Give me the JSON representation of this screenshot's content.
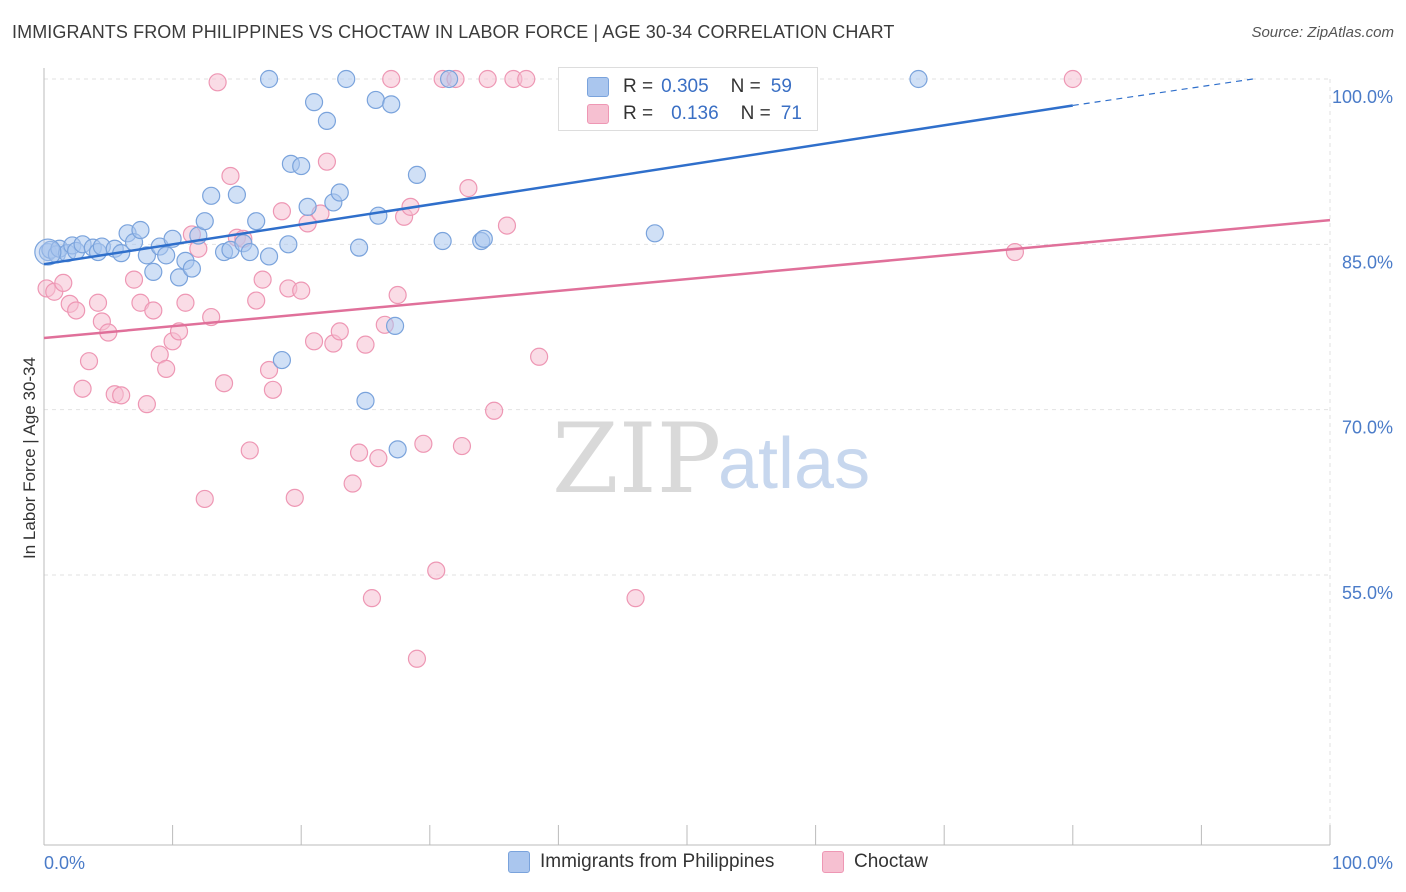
{
  "title": "IMMIGRANTS FROM PHILIPPINES VS CHOCTAW IN LABOR FORCE | AGE 30-34 CORRELATION CHART",
  "source": "Source: ZipAtlas.com",
  "watermark": {
    "zip": "ZIP",
    "atlas": "atlas"
  },
  "colors": {
    "blue_fill": "#aac6ee",
    "blue_stroke": "#7aa3dc",
    "blue_line": "#2f6fcb",
    "pink_fill": "#f6c0d1",
    "pink_stroke": "#ee97b4",
    "pink_line": "#e0709a",
    "grid": "#e2e2e2",
    "axis_text": "#4a7bc8"
  },
  "legend": {
    "rows": [
      {
        "r_label": "R =",
        "r_value": "0.305",
        "n_label": "N =",
        "n_value": "59"
      },
      {
        "r_label": "R =",
        "r_value": "0.136",
        "n_label": "N =",
        "n_value": "71"
      }
    ]
  },
  "chart_data": {
    "type": "scatter",
    "title": "IMMIGRANTS FROM PHILIPPINES VS CHOCTAW IN LABOR FORCE | AGE 30-34 CORRELATION CHART",
    "xlabel": "",
    "ylabel": "In Labor Force | Age 30-34",
    "xlim": [
      0,
      100
    ],
    "ylim": [
      40,
      101.5
    ],
    "x_tick_labels": [
      "0.0%",
      "100.0%"
    ],
    "y_ticks": [
      55,
      70,
      85,
      100
    ],
    "y_tick_labels": [
      "55.0%",
      "70.0%",
      "85.0%",
      "100.0%"
    ],
    "grid": true,
    "legend_placement": "bottom-center",
    "series": [
      {
        "name": "Immigrants from Philippines",
        "color": "#aac6ee",
        "trend": {
          "x0": 0,
          "y0": 83.2,
          "x1": 80,
          "y1": 97.6,
          "dashed_to_x": 94,
          "dashed_to_y": 100
        },
        "points": [
          [
            0.3,
            84.3
          ],
          [
            0.5,
            84.5
          ],
          [
            1.0,
            84.1
          ],
          [
            1.2,
            84.6
          ],
          [
            1.8,
            84.2
          ],
          [
            2.2,
            84.9
          ],
          [
            2.5,
            84.4
          ],
          [
            3.0,
            85.0
          ],
          [
            3.8,
            84.7
          ],
          [
            4.2,
            84.3
          ],
          [
            4.5,
            84.8
          ],
          [
            5.5,
            84.6
          ],
          [
            6.0,
            84.2
          ],
          [
            6.5,
            86.0
          ],
          [
            7.0,
            85.2
          ],
          [
            7.5,
            86.3
          ],
          [
            8.0,
            84.0
          ],
          [
            8.5,
            82.5
          ],
          [
            9.0,
            84.8
          ],
          [
            9.5,
            84.0
          ],
          [
            10.0,
            85.5
          ],
          [
            10.5,
            82.0
          ],
          [
            11.0,
            83.5
          ],
          [
            11.5,
            82.8
          ],
          [
            12.0,
            85.8
          ],
          [
            12.5,
            87.1
          ],
          [
            13.0,
            89.4
          ],
          [
            14.0,
            84.3
          ],
          [
            14.5,
            84.5
          ],
          [
            15.0,
            89.5
          ],
          [
            15.5,
            85.1
          ],
          [
            16.0,
            84.3
          ],
          [
            16.5,
            87.1
          ],
          [
            17.5,
            83.9
          ],
          [
            18.5,
            74.5
          ],
          [
            19.0,
            85.0
          ],
          [
            19.2,
            92.3
          ],
          [
            20.0,
            92.1
          ],
          [
            20.5,
            88.4
          ],
          [
            21.0,
            97.9
          ],
          [
            22.0,
            96.2
          ],
          [
            22.5,
            88.8
          ],
          [
            23.0,
            89.7
          ],
          [
            23.5,
            100.0
          ],
          [
            24.5,
            84.7
          ],
          [
            25.0,
            70.8
          ],
          [
            25.8,
            98.1
          ],
          [
            26.0,
            87.6
          ],
          [
            27.0,
            97.7
          ],
          [
            27.3,
            77.6
          ],
          [
            27.5,
            66.4
          ],
          [
            29.0,
            91.3
          ],
          [
            31.0,
            85.3
          ],
          [
            31.5,
            100.0
          ],
          [
            34.0,
            85.3
          ],
          [
            34.2,
            85.5
          ],
          [
            47.5,
            86.0
          ],
          [
            68.0,
            100.0
          ],
          [
            17.5,
            100.0
          ]
        ]
      },
      {
        "name": "Choctaw",
        "color": "#f6c0d1",
        "trend": {
          "x0": 0,
          "y0": 76.5,
          "x1": 100,
          "y1": 87.2
        },
        "points": [
          [
            0.2,
            81.0
          ],
          [
            0.8,
            80.7
          ],
          [
            1.5,
            81.5
          ],
          [
            2.0,
            79.6
          ],
          [
            2.5,
            79.0
          ],
          [
            3.0,
            71.9
          ],
          [
            3.5,
            74.4
          ],
          [
            4.2,
            79.7
          ],
          [
            4.5,
            78.0
          ],
          [
            5.0,
            77.0
          ],
          [
            5.5,
            71.4
          ],
          [
            6.0,
            71.3
          ],
          [
            7.0,
            81.8
          ],
          [
            7.5,
            79.7
          ],
          [
            8.0,
            70.5
          ],
          [
            8.5,
            79.0
          ],
          [
            9.0,
            75.0
          ],
          [
            9.5,
            73.7
          ],
          [
            10.0,
            76.2
          ],
          [
            10.5,
            77.1
          ],
          [
            11.0,
            79.7
          ],
          [
            11.5,
            85.9
          ],
          [
            12.0,
            84.6
          ],
          [
            12.5,
            61.9
          ],
          [
            13.0,
            78.4
          ],
          [
            13.5,
            99.7
          ],
          [
            14.0,
            72.4
          ],
          [
            14.5,
            91.2
          ],
          [
            15.0,
            85.6
          ],
          [
            15.5,
            85.5
          ],
          [
            16.0,
            66.3
          ],
          [
            16.5,
            79.9
          ],
          [
            17.0,
            81.8
          ],
          [
            17.5,
            73.6
          ],
          [
            17.8,
            71.8
          ],
          [
            18.5,
            88.0
          ],
          [
            19.0,
            81.0
          ],
          [
            19.5,
            62.0
          ],
          [
            20.0,
            80.8
          ],
          [
            20.5,
            86.9
          ],
          [
            21.0,
            76.2
          ],
          [
            21.5,
            87.8
          ],
          [
            22.0,
            92.5
          ],
          [
            22.5,
            76.0
          ],
          [
            23.0,
            77.1
          ],
          [
            24.0,
            63.3
          ],
          [
            24.5,
            66.1
          ],
          [
            25.0,
            75.9
          ],
          [
            25.5,
            52.9
          ],
          [
            26.0,
            65.6
          ],
          [
            26.5,
            77.7
          ],
          [
            27.0,
            100.0
          ],
          [
            27.5,
            80.4
          ],
          [
            28.0,
            87.5
          ],
          [
            28.5,
            88.4
          ],
          [
            29.0,
            47.4
          ],
          [
            29.5,
            66.9
          ],
          [
            30.5,
            55.4
          ],
          [
            31.0,
            100.0
          ],
          [
            32.0,
            100.0
          ],
          [
            32.5,
            66.7
          ],
          [
            33.0,
            90.1
          ],
          [
            34.5,
            100.0
          ],
          [
            35.0,
            69.9
          ],
          [
            36.0,
            86.7
          ],
          [
            36.5,
            100.0
          ],
          [
            37.5,
            100.0
          ],
          [
            38.5,
            74.8
          ],
          [
            46.0,
            52.9
          ],
          [
            75.5,
            84.3
          ],
          [
            80.0,
            100.0
          ]
        ]
      }
    ]
  },
  "bottom_legend": [
    {
      "label": "Immigrants from Philippines"
    },
    {
      "label": "Choctaw"
    }
  ]
}
